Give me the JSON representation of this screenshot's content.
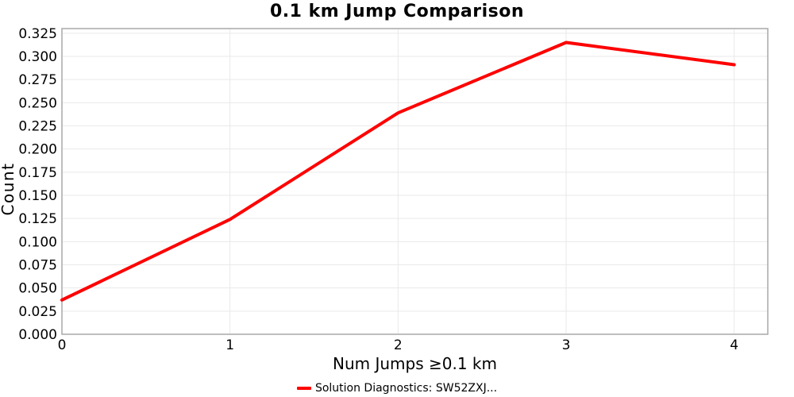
{
  "chart_data": {
    "type": "line",
    "title": "0.1 km Jump Comparison",
    "xlabel": "Num Jumps ≥0.1 km",
    "ylabel": "Count",
    "x": [
      0,
      1,
      2,
      3,
      4
    ],
    "series": [
      {
        "name": "Solution Diagnostics: SW52ZXJ...",
        "color": "#ff0000",
        "values": [
          0.037,
          0.124,
          0.239,
          0.315,
          0.291
        ]
      }
    ],
    "xticks": [
      0,
      1,
      2,
      3,
      4
    ],
    "yticks": [
      0.0,
      0.025,
      0.05,
      0.075,
      0.1,
      0.125,
      0.15,
      0.175,
      0.2,
      0.225,
      0.25,
      0.275,
      0.3,
      0.325
    ],
    "ytick_format_decimals": 3,
    "xlim": [
      0,
      4.2
    ],
    "ylim": [
      0,
      0.33
    ],
    "grid": true,
    "legend_position": "bottom"
  },
  "colors": {
    "panel_border": "#a9a9a9",
    "gridline": "#e9e9e9",
    "text": "#000000",
    "background": "#ffffff"
  }
}
